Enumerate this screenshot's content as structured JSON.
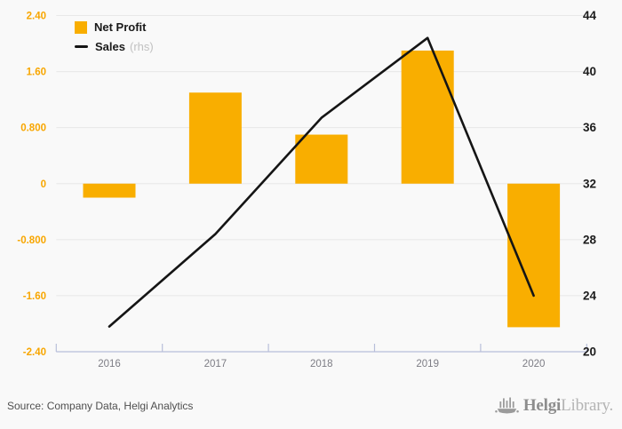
{
  "legend": {
    "net_profit_label": "Net Profit",
    "sales_label": "Sales",
    "sales_suffix": "(rhs)"
  },
  "footer": {
    "source": "Source: Company Data, Helgi Analytics",
    "logo_text_primary": "Helgi",
    "logo_text_secondary": "Library."
  },
  "colors": {
    "background": "#f9f9f9",
    "bar": "#F9AE00",
    "line": "#151515",
    "grid": "#e8e8e8",
    "axis_line": "#b8bfda",
    "left_axis_label": "#F8A600",
    "right_axis_label": "#1c1c1c",
    "x_label": "#7d7d85",
    "legend_text": "#1a1a1a",
    "rhs_suffix": "#c1c1c1",
    "source_text": "#4f4f4f",
    "logo_icon": "#9b9b9b",
    "logo_dark": "#8d8d8d",
    "logo_light": "#b4b4b4"
  },
  "chart_data": {
    "type": "bar",
    "categories": [
      "2016",
      "2017",
      "2018",
      "2019",
      "2020"
    ],
    "series": [
      {
        "name": "Net Profit",
        "type": "bar",
        "axis": "left",
        "values": [
          -0.2,
          1.3,
          0.7,
          1.9,
          -2.05
        ]
      },
      {
        "name": "Sales",
        "type": "line",
        "axis": "right",
        "values": [
          21.8,
          28.4,
          36.7,
          42.4,
          24.0
        ]
      }
    ],
    "left_axis": {
      "labels": [
        "2.40",
        "1.60",
        "0.800",
        "0",
        "-0.800",
        "-1.60",
        "-2.40"
      ],
      "tick_values": [
        2.4,
        1.6,
        0.8,
        0,
        -0.8,
        -1.6,
        -2.4
      ],
      "min": -2.4,
      "max": 2.4
    },
    "right_axis": {
      "labels": [
        "44",
        "40",
        "36",
        "32",
        "28",
        "24",
        "20"
      ],
      "tick_values": [
        44,
        40,
        36,
        32,
        28,
        24,
        20
      ],
      "min": 20,
      "max": 44
    },
    "title": "",
    "legend_position": "top-left",
    "grid": "horizontal"
  }
}
